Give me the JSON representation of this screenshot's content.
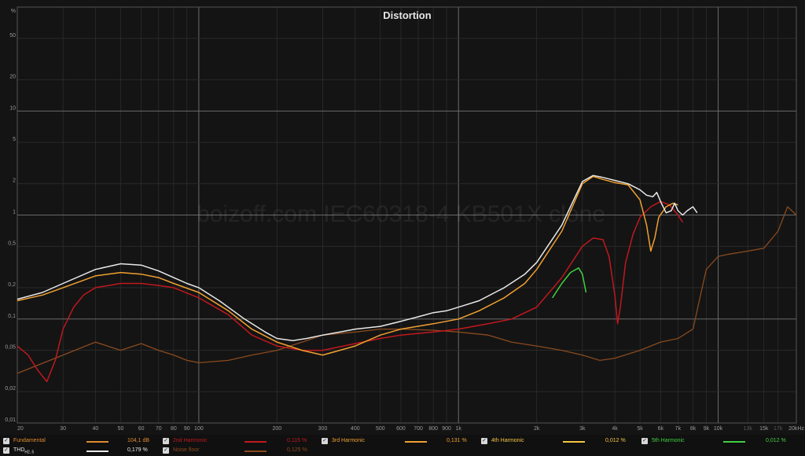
{
  "chart_data": {
    "type": "line",
    "title": "Distortion",
    "watermark": "boizoff.com IEC60318-4 KB501X clone",
    "xscale": "log",
    "yscale": "log",
    "xlim": [
      20,
      20000
    ],
    "ylim": [
      0.01,
      100
    ],
    "yunit": "%",
    "grid": true,
    "x_tick_labels": [
      "20",
      "30",
      "40",
      "50",
      "60",
      "70",
      "80",
      "90",
      "100",
      "200",
      "300",
      "400",
      "500",
      "600",
      "700",
      "800",
      "900",
      "1k",
      "2k",
      "3k",
      "4k",
      "5k",
      "6k",
      "7k",
      "8k",
      "9k",
      "10k",
      "15k",
      "20kHz"
    ],
    "x_tick_values": [
      20,
      30,
      40,
      50,
      60,
      70,
      80,
      90,
      100,
      200,
      300,
      400,
      500,
      600,
      700,
      800,
      900,
      1000,
      2000,
      3000,
      4000,
      5000,
      6000,
      7000,
      8000,
      9000,
      10000,
      15000,
      20000
    ],
    "extra_x_tick_labels": [
      "13k",
      "17k"
    ],
    "extra_x_tick_values": [
      13000,
      17000
    ],
    "y_tick_labels": [
      "0,01",
      "0,02",
      "0,05",
      "0,1",
      "0,2",
      "0,5",
      "1",
      "2",
      "5",
      "10",
      "20",
      "50",
      "%"
    ],
    "y_tick_values": [
      0.01,
      0.02,
      0.05,
      0.1,
      0.2,
      0.5,
      1,
      2,
      5,
      10,
      20,
      50,
      100
    ],
    "series": [
      {
        "name": "Fundamental",
        "color": "#e08a30",
        "value_text": "104,1 dB",
        "plotted": false,
        "x": [],
        "y": []
      },
      {
        "name": "THD",
        "sub": "H2..5",
        "color": "#e8e8e8",
        "value_text": "0,179 %",
        "x": [
          20,
          25,
          30,
          40,
          50,
          60,
          70,
          80,
          90,
          100,
          120,
          150,
          180,
          200,
          230,
          260,
          300,
          350,
          400,
          500,
          600,
          700,
          800,
          900,
          1000,
          1200,
          1500,
          1800,
          2000,
          2500,
          3000,
          3300,
          3600,
          4000,
          4500,
          5000,
          5300,
          5600,
          5800,
          6000,
          6300,
          6600,
          6800,
          7000,
          7300,
          7600,
          8000,
          8300
        ],
        "y": [
          0.155,
          0.18,
          0.22,
          0.3,
          0.34,
          0.33,
          0.29,
          0.25,
          0.22,
          0.2,
          0.15,
          0.1,
          0.075,
          0.065,
          0.062,
          0.065,
          0.07,
          0.075,
          0.08,
          0.085,
          0.095,
          0.105,
          0.115,
          0.12,
          0.13,
          0.15,
          0.2,
          0.27,
          0.35,
          0.8,
          2.1,
          2.4,
          2.3,
          2.15,
          2.0,
          1.75,
          1.55,
          1.5,
          1.65,
          1.35,
          1.05,
          1.1,
          1.3,
          1.1,
          1.0,
          1.1,
          1.2,
          1.05
        ]
      },
      {
        "name": "2nd Harmonic",
        "color": "#c0181e",
        "value_text": "0,115 %",
        "x": [
          20,
          22,
          24,
          26,
          28,
          30,
          33,
          36,
          40,
          50,
          60,
          70,
          80,
          100,
          130,
          160,
          200,
          250,
          300,
          400,
          500,
          600,
          800,
          1000,
          1300,
          1600,
          2000,
          2500,
          3000,
          3300,
          3600,
          3800,
          4000,
          4100,
          4200,
          4400,
          4700,
          5000,
          5500,
          6000,
          6500,
          7000,
          7300
        ],
        "y": [
          0.055,
          0.045,
          0.032,
          0.025,
          0.04,
          0.08,
          0.13,
          0.17,
          0.2,
          0.22,
          0.22,
          0.21,
          0.2,
          0.16,
          0.11,
          0.07,
          0.055,
          0.05,
          0.05,
          0.058,
          0.065,
          0.07,
          0.075,
          0.08,
          0.09,
          0.1,
          0.13,
          0.25,
          0.5,
          0.6,
          0.58,
          0.4,
          0.17,
          0.09,
          0.13,
          0.35,
          0.65,
          0.95,
          1.2,
          1.35,
          1.25,
          1.0,
          0.85
        ]
      },
      {
        "name": "3rd Harmonic",
        "color": "#f0a030",
        "value_text": "0,131 %",
        "x": [
          20,
          25,
          30,
          40,
          50,
          60,
          70,
          80,
          100,
          130,
          160,
          200,
          250,
          300,
          400,
          500,
          600,
          800,
          1000,
          1200,
          1500,
          1800,
          2000,
          2500,
          3000,
          3300,
          3600,
          4000,
          4500,
          5000,
          5300,
          5500,
          5700,
          5900,
          6300,
          6700,
          7000
        ],
        "y": [
          0.15,
          0.17,
          0.2,
          0.26,
          0.28,
          0.27,
          0.25,
          0.22,
          0.18,
          0.12,
          0.08,
          0.06,
          0.05,
          0.045,
          0.055,
          0.07,
          0.08,
          0.09,
          0.1,
          0.12,
          0.16,
          0.22,
          0.3,
          0.7,
          2.0,
          2.35,
          2.2,
          2.05,
          1.95,
          1.4,
          0.8,
          0.45,
          0.6,
          0.95,
          1.2,
          1.3,
          1.25
        ]
      },
      {
        "name": "4th Harmonic",
        "color": "#f5c542",
        "value_text": "0,012 %",
        "plotted": false,
        "x": [],
        "y": []
      },
      {
        "name": "5th Harmonic",
        "color": "#40d040",
        "value_text": "0,012 %",
        "x": [
          2300,
          2500,
          2700,
          2900,
          3000,
          3100
        ],
        "y": [
          0.16,
          0.22,
          0.28,
          0.31,
          0.27,
          0.18
        ]
      },
      {
        "name": "Noise floor",
        "color": "#8a4a1e",
        "value_text": "0,125 %",
        "x": [
          20,
          30,
          40,
          50,
          60,
          70,
          80,
          90,
          100,
          130,
          160,
          200,
          250,
          300,
          400,
          500,
          600,
          800,
          1000,
          1300,
          1600,
          2000,
          2500,
          3000,
          3500,
          4000,
          5000,
          6000,
          7000,
          8000,
          9000,
          10000,
          11000,
          13000,
          15000,
          17000,
          18500,
          20000
        ],
        "y": [
          0.03,
          0.045,
          0.06,
          0.05,
          0.058,
          0.05,
          0.045,
          0.04,
          0.038,
          0.04,
          0.045,
          0.05,
          0.06,
          0.07,
          0.075,
          0.08,
          0.08,
          0.078,
          0.075,
          0.07,
          0.06,
          0.055,
          0.05,
          0.045,
          0.04,
          0.042,
          0.05,
          0.06,
          0.065,
          0.08,
          0.3,
          0.4,
          0.42,
          0.45,
          0.48,
          0.7,
          1.2,
          1.0
        ]
      }
    ]
  }
}
